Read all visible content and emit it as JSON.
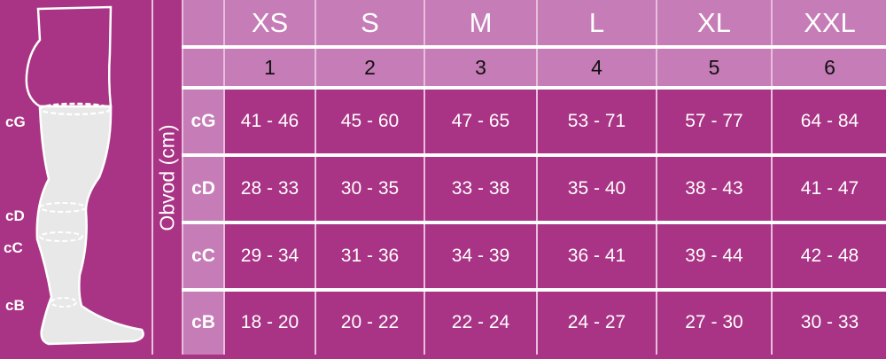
{
  "axis_label": "Obvod (cm)",
  "leg_labels": [
    "cG",
    "cD",
    "cC",
    "cB"
  ],
  "colors": {
    "background": "#a93384",
    "header": "#c67cb6",
    "leg": "#e8e8e8"
  },
  "table": {
    "sizes": [
      "XS",
      "S",
      "M",
      "L",
      "XL",
      "XXL"
    ],
    "numbers": [
      "1",
      "2",
      "3",
      "4",
      "5",
      "6"
    ],
    "rows": [
      {
        "label": "cG",
        "values": [
          "41 - 46",
          "45 - 60",
          "47 - 65",
          "53 - 71",
          "57 - 77",
          "64 - 84"
        ]
      },
      {
        "label": "cD",
        "values": [
          "28 - 33",
          "30 - 35",
          "33 - 38",
          "35 - 40",
          "38 - 43",
          "41 - 47"
        ]
      },
      {
        "label": "cC",
        "values": [
          "29 - 34",
          "31 - 36",
          "34 - 39",
          "36 - 41",
          "39 - 44",
          "42 - 48"
        ]
      },
      {
        "label": "cB",
        "values": [
          "18 - 20",
          "20 - 22",
          "22 - 24",
          "24 - 27",
          "27 - 30",
          "30 - 33"
        ]
      }
    ]
  }
}
